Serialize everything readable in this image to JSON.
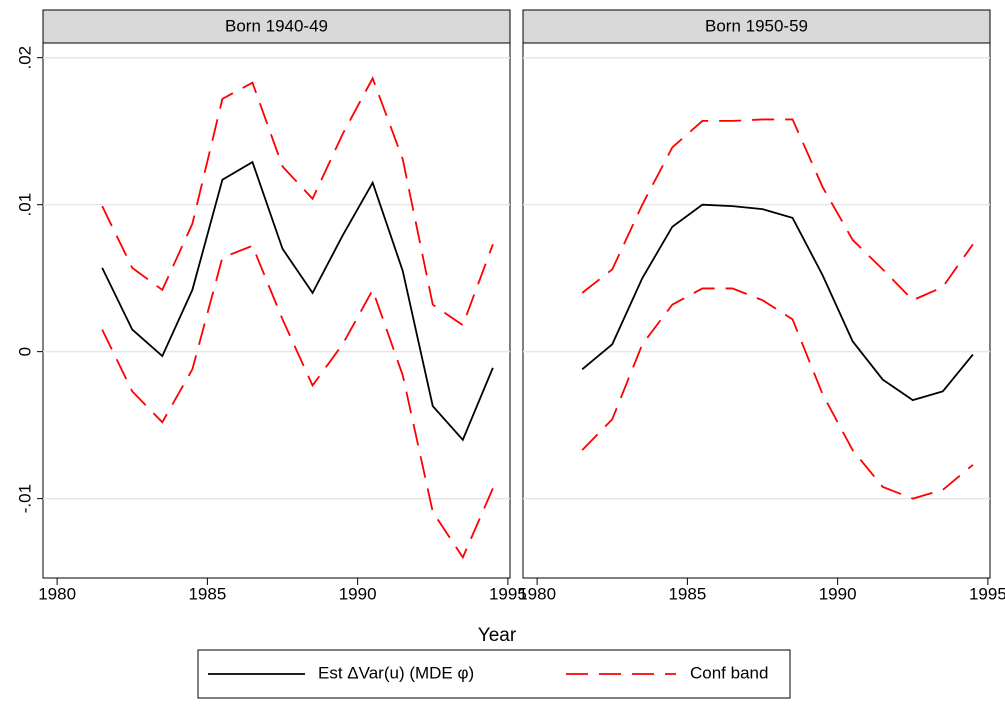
{
  "chart_data": [
    {
      "type": "line",
      "title": "Born 1940-49",
      "x": [
        1981.5,
        1982.5,
        1983.5,
        1984.5,
        1985.5,
        1986.5,
        1987.5,
        1988.5,
        1989.5,
        1990.5,
        1991.5,
        1992.5,
        1993.5,
        1994.5
      ],
      "series": [
        {
          "name": "Est ΔVar(u) (MDE φ)",
          "color": "#000000",
          "values": [
            0.0057,
            0.0015,
            -0.0003,
            0.0042,
            0.0117,
            0.0129,
            0.007,
            0.004,
            0.0079,
            0.0115,
            0.0055,
            -0.0037,
            -0.006,
            -0.0011
          ]
        },
        {
          "name": "Conf band",
          "color": "#ff0000",
          "dashed": true,
          "values": [
            0.0099,
            0.0057,
            0.0042,
            0.0087,
            0.0172,
            0.0183,
            0.0126,
            0.0104,
            0.0148,
            0.0186,
            0.0131,
            0.0032,
            0.0018,
            0.0073
          ]
        },
        {
          "name": "Conf band",
          "color": "#ff0000",
          "dashed": true,
          "values": [
            0.0015,
            -0.0027,
            -0.0048,
            -0.0012,
            0.0064,
            0.0072,
            0.0022,
            -0.0023,
            0.0005,
            0.0042,
            -0.0016,
            -0.0109,
            -0.014,
            -0.0093
          ]
        }
      ],
      "xlim": [
        1979.53,
        1995.07
      ],
      "xticks": [
        1980,
        1985,
        1990,
        1995
      ],
      "ylim": [
        -0.0154,
        0.021
      ],
      "yticks": [
        {
          "value": 0.02,
          "label": ".02"
        },
        {
          "value": 0.01,
          "label": ".01"
        },
        0,
        {
          "value": -0.01,
          "label": "-.01"
        }
      ],
      "grid": true
    },
    {
      "type": "line",
      "title": "Born 1950-59",
      "x": [
        1981.5,
        1982.5,
        1983.5,
        1984.5,
        1985.5,
        1986.5,
        1987.5,
        1988.5,
        1989.5,
        1990.5,
        1991.5,
        1992.5,
        1993.5,
        1994.5
      ],
      "series": [
        {
          "name": "Est ΔVar(u) (MDE φ)",
          "color": "#000000",
          "values": [
            -0.0012,
            0.0005,
            0.005,
            0.0085,
            0.01,
            0.0099,
            0.0097,
            0.0091,
            0.0052,
            0.0007,
            -0.0019,
            -0.0033,
            -0.0027,
            -0.0002
          ]
        },
        {
          "name": "Conf band",
          "color": "#ff0000",
          "dashed": true,
          "values": [
            0.004,
            0.0056,
            0.01,
            0.0139,
            0.0157,
            0.0157,
            0.0158,
            0.0158,
            0.0112,
            0.0076,
            0.0056,
            0.0035,
            0.0044,
            0.0073
          ]
        },
        {
          "name": "Conf band",
          "color": "#ff0000",
          "dashed": true,
          "values": [
            -0.0067,
            -0.0046,
            0.0005,
            0.0032,
            0.0043,
            0.0043,
            0.0035,
            0.0022,
            -0.0029,
            -0.0067,
            -0.0092,
            -0.01,
            -0.0094,
            -0.0077
          ]
        }
      ],
      "xlim": [
        1979.53,
        1995.07
      ],
      "xticks": [
        1980,
        1985,
        1990,
        1995
      ],
      "ylim": [
        -0.0154,
        0.021
      ],
      "grid": true
    }
  ],
  "x_label": "Year"
}
